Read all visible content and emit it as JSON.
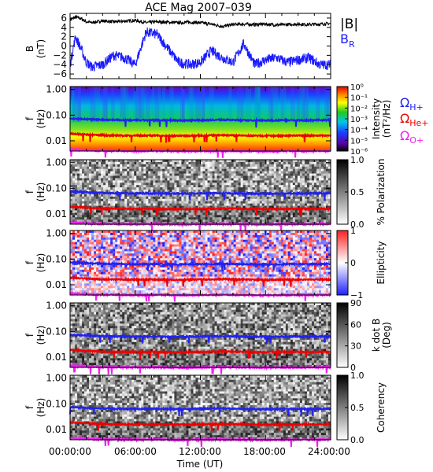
{
  "title": "ACE Mag 2007–039",
  "xlabel": "Time (UT)",
  "x_tick_labels": [
    "00:00:00",
    "06:00:00",
    "12:00:00",
    "18:00:00",
    "24:00:00"
  ],
  "legend_top": {
    "b_mag": "|B|",
    "b_r": "B",
    "b_r_sub": "R"
  },
  "gyro_labels": [
    {
      "main": "Ω",
      "sub": "H+",
      "color": "#2222ee"
    },
    {
      "main": "Ω",
      "sub": "He+",
      "color": "#ee0000"
    },
    {
      "main": "Ω",
      "sub": "O+",
      "color": "#ee22ee"
    }
  ],
  "panel1": {
    "ylabel": "B",
    "yunit": "(nT)",
    "y_ticks": [
      "6",
      "4",
      "2",
      "0",
      "−2",
      "−4",
      "−6"
    ]
  },
  "spectro_ylabel": "f",
  "spectro_yunit": "(Hz)",
  "spectro_y_ticks": [
    "1.00",
    "0.10",
    "0.01"
  ],
  "colorbars": [
    {
      "label_lines": [
        "Intensity",
        "(nT²/Hz)"
      ],
      "ticks": [
        "10⁰",
        "10⁻¹",
        "10⁻²",
        "10⁻³",
        "10⁻⁴",
        "10⁻⁵",
        "10⁻⁶"
      ]
    },
    {
      "label_lines": [
        "% Polarization"
      ],
      "ticks": [
        "1.0",
        "0.5",
        "0.0"
      ]
    },
    {
      "label_lines": [
        "Ellipticity"
      ],
      "ticks": [
        "1",
        "0",
        "−1"
      ]
    },
    {
      "label_lines": [
        "k dot B",
        "(Deg)"
      ],
      "ticks": [
        "90",
        "60",
        "30",
        "0"
      ]
    },
    {
      "label_lines": [
        "Coherency"
      ],
      "ticks": [
        "1.0",
        "0.5",
        "0.0"
      ]
    }
  ],
  "chart_data": {
    "type": "line",
    "title": "ACE Mag 2007–039",
    "x_range_hours": [
      0,
      24
    ],
    "panels": [
      {
        "name": "field",
        "ylabel": "B (nT)",
        "ylim": [
          -7,
          7
        ],
        "series": [
          {
            "name": "|B|",
            "color": "#000000",
            "x": [
              0,
              0.5,
              1,
              1.5,
              2,
              3,
              4,
              5,
              6,
              7,
              8,
              9,
              10,
              11,
              12,
              13,
              14,
              15,
              16,
              17,
              18,
              19,
              20,
              21,
              22,
              23,
              24
            ],
            "y": [
              5.6,
              6.2,
              5.9,
              5.2,
              5.0,
              5.4,
              5.2,
              5.3,
              5.5,
              5.0,
              5.2,
              5.1,
              5.0,
              5.1,
              5.0,
              4.7,
              4.2,
              4.6,
              4.7,
              4.6,
              4.7,
              4.5,
              4.6,
              4.7,
              4.6,
              4.7,
              4.8
            ]
          },
          {
            "name": "B_R",
            "color": "#1a1aff",
            "x": [
              0,
              0.5,
              1,
              1.5,
              2,
              3,
              4,
              5,
              6,
              7,
              8,
              9,
              10,
              11,
              12,
              13,
              14,
              15,
              16,
              17,
              18,
              19,
              20,
              21,
              22,
              23,
              24
            ],
            "y": [
              -4.0,
              2.0,
              -0.5,
              -3.5,
              -4.5,
              -4.0,
              -2.0,
              -2.5,
              -4.0,
              3.0,
              2.5,
              -0.5,
              -3.5,
              -4.0,
              -3.5,
              -1.0,
              -2.5,
              -3.5,
              0.5,
              -4.0,
              -3.0,
              -2.5,
              -3.5,
              -3.0,
              -2.5,
              -4.0,
              -4.0
            ]
          }
        ]
      },
      {
        "name": "spectrogram",
        "ylabel": "f (Hz)",
        "yscale": "log",
        "ylim": [
          0.004,
          1.3
        ],
        "series": [
          {
            "name": "ΩH+",
            "color": "#2222ee",
            "x": [
              0,
              2,
              4,
              6,
              8,
              10,
              12,
              14,
              16,
              18,
              20,
              22,
              24
            ],
            "y": [
              0.075,
              0.068,
              0.065,
              0.063,
              0.064,
              0.062,
              0.064,
              0.066,
              0.063,
              0.062,
              0.064,
              0.063,
              0.065
            ]
          },
          {
            "name": "ΩHe+",
            "color": "#ee0000",
            "x": [
              0,
              2,
              4,
              6,
              8,
              10,
              12,
              14,
              16,
              18,
              20,
              22,
              24
            ],
            "y": [
              0.019,
              0.017,
              0.016,
              0.016,
              0.016,
              0.0155,
              0.016,
              0.0165,
              0.016,
              0.0155,
              0.016,
              0.016,
              0.016
            ]
          },
          {
            "name": "ΩO+",
            "color": "#ee22ee",
            "x": [
              0,
              2,
              4,
              6,
              8,
              10,
              12,
              14,
              16,
              18,
              20,
              22,
              24
            ],
            "y": [
              0.0047,
              0.0042,
              0.0041,
              0.004,
              0.0041,
              0.0039,
              0.004,
              0.0041,
              0.004,
              0.0039,
              0.004,
              0.004,
              0.0041
            ]
          }
        ]
      }
    ]
  }
}
